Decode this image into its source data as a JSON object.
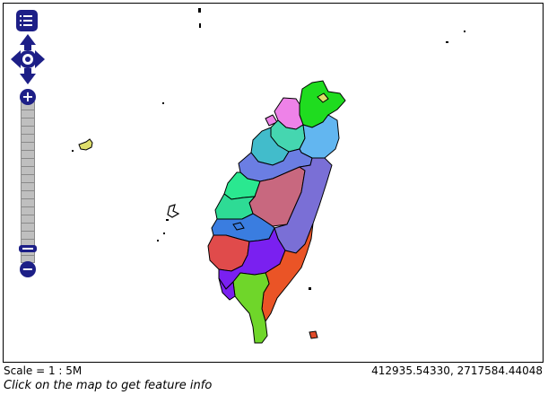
{
  "status": {
    "scale": "Scale = 1 : 5M",
    "coordinates": "412935.54330, 2717584.44048",
    "hint": "Click on the map to get feature info"
  },
  "controls": {
    "layer_switcher_icon": "list-icon",
    "pan_icon": "pan-arrows-icon",
    "zoom_in_label": "+",
    "zoom_out_label": "−"
  },
  "colors": {
    "control": "#1d1f87",
    "regions": [
      "#1fdc1f",
      "#ee82e8",
      "#45d6b0",
      "#62b6f0",
      "#42bccb",
      "#6b7ee3",
      "#2ae890",
      "#c8687f",
      "#7a6fd6",
      "#2edb95",
      "#3a7de0",
      "#e04b4b",
      "#7a20f0",
      "#ea5426",
      "#6fd62a",
      "#e8d27a",
      "#dede6a",
      "#e04b2a"
    ]
  }
}
